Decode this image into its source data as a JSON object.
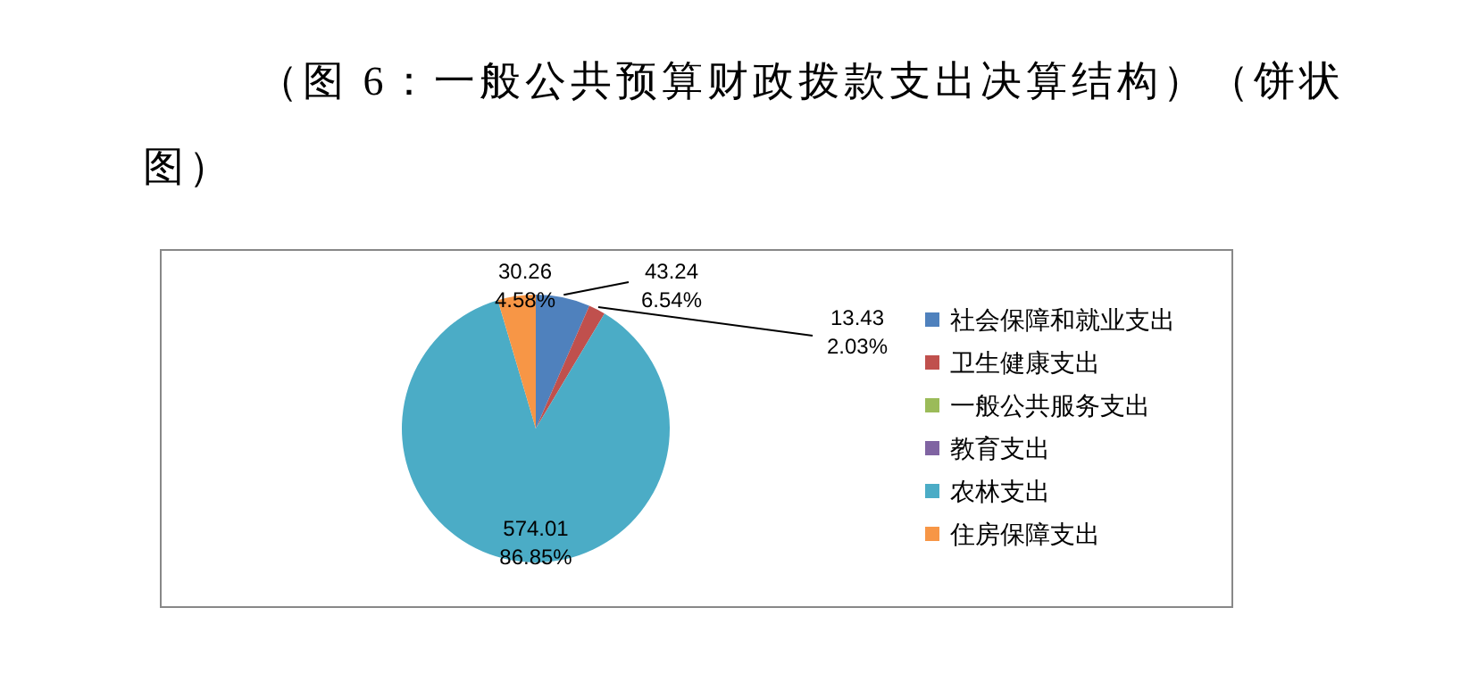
{
  "chart_data": {
    "type": "pie",
    "title": "（图 6：一般公共预算财政拨款支出决算结构）（饼状图）",
    "categories": [
      "社会保障和就业支出",
      "卫生健康支出",
      "一般公共服务支出",
      "教育支出",
      "农林支出",
      "住房保障支出"
    ],
    "values": [
      43.24,
      13.43,
      0,
      0,
      574.01,
      30.26
    ],
    "colors": [
      "#4f81bd",
      "#c0504d",
      "#9bbb59",
      "#8064a2",
      "#4bacc6",
      "#f79646"
    ],
    "value_labels": [
      "43.24\n6.54%",
      "13.43\n2.03%",
      null,
      null,
      "574.01\n86.85%",
      "30.26\n4.58%"
    ],
    "legend": "right"
  }
}
